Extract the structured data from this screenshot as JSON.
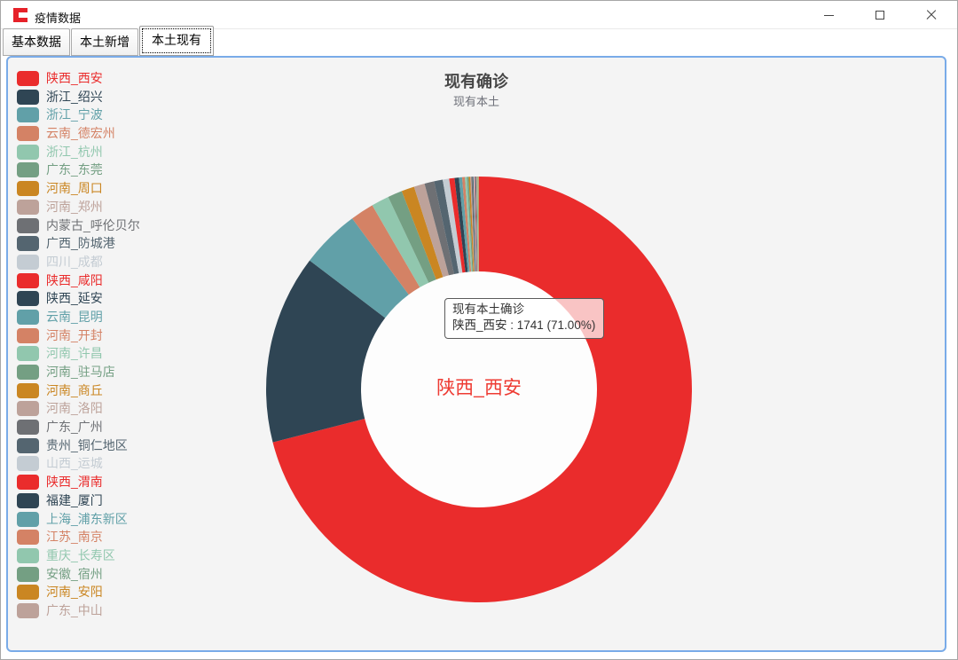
{
  "window": {
    "title": "疫情数据"
  },
  "tabs": [
    {
      "label": "基本数据",
      "active": false
    },
    {
      "label": "本土新增",
      "active": false
    },
    {
      "label": "本土现有",
      "active": true
    }
  ],
  "tooltip": {
    "line1": "现有本土确诊",
    "line2": "陕西_西安 : 1741 (71.00%)"
  },
  "colors": {
    "palette": [
      "#ea2c2c",
      "#2f4554",
      "#61a0a8",
      "#d48265",
      "#91c7ae",
      "#749f83",
      "#ca8622",
      "#bda29a",
      "#6e7074",
      "#546570",
      "#c4ccd3"
    ],
    "panel_border": "#79abe8",
    "panel_bg": "#f4f4f4",
    "hole_bg": "#fdfdfd",
    "center_label_color": "#ee3b33",
    "title_color": "#464646",
    "subtitle_color": "#6e7079"
  },
  "chart_data": {
    "type": "pie",
    "title": "现有确诊",
    "subtitle": "现有本土",
    "series_name": "现有本土确诊",
    "legend_position": "left",
    "donut": true,
    "start_angle_deg": 90,
    "clockwise": true,
    "selected_label": "陕西_西安",
    "selected_value": 1741,
    "selected_percent": "71.00%",
    "categories": [
      "陕西_西安",
      "浙江_绍兴",
      "浙江_宁波",
      "云南_德宏州",
      "浙江_杭州",
      "广东_东莞",
      "河南_周口",
      "河南_郑州",
      "内蒙古_呼伦贝尔",
      "广西_防城港",
      "四川_成都",
      "陕西_咸阳",
      "陕西_延安",
      "云南_昆明",
      "河南_开封",
      "河南_许昌",
      "河南_驻马店",
      "河南_商丘",
      "河南_洛阳",
      "广东_广州",
      "贵州_铜仁地区",
      "山西_运城",
      "陕西_渭南",
      "福建_厦门",
      "上海_浦东新区",
      "江苏_南京",
      "重庆_长寿区",
      "安徽_宿州",
      "河南_安阳",
      "广东_中山"
    ],
    "values": [
      1741,
      352,
      110,
      44,
      33,
      27,
      24,
      20,
      18,
      16,
      12,
      10,
      8,
      6,
      5,
      4,
      3,
      3,
      2,
      2,
      2,
      2,
      1,
      1,
      1,
      1,
      1,
      1,
      1,
      1
    ]
  }
}
